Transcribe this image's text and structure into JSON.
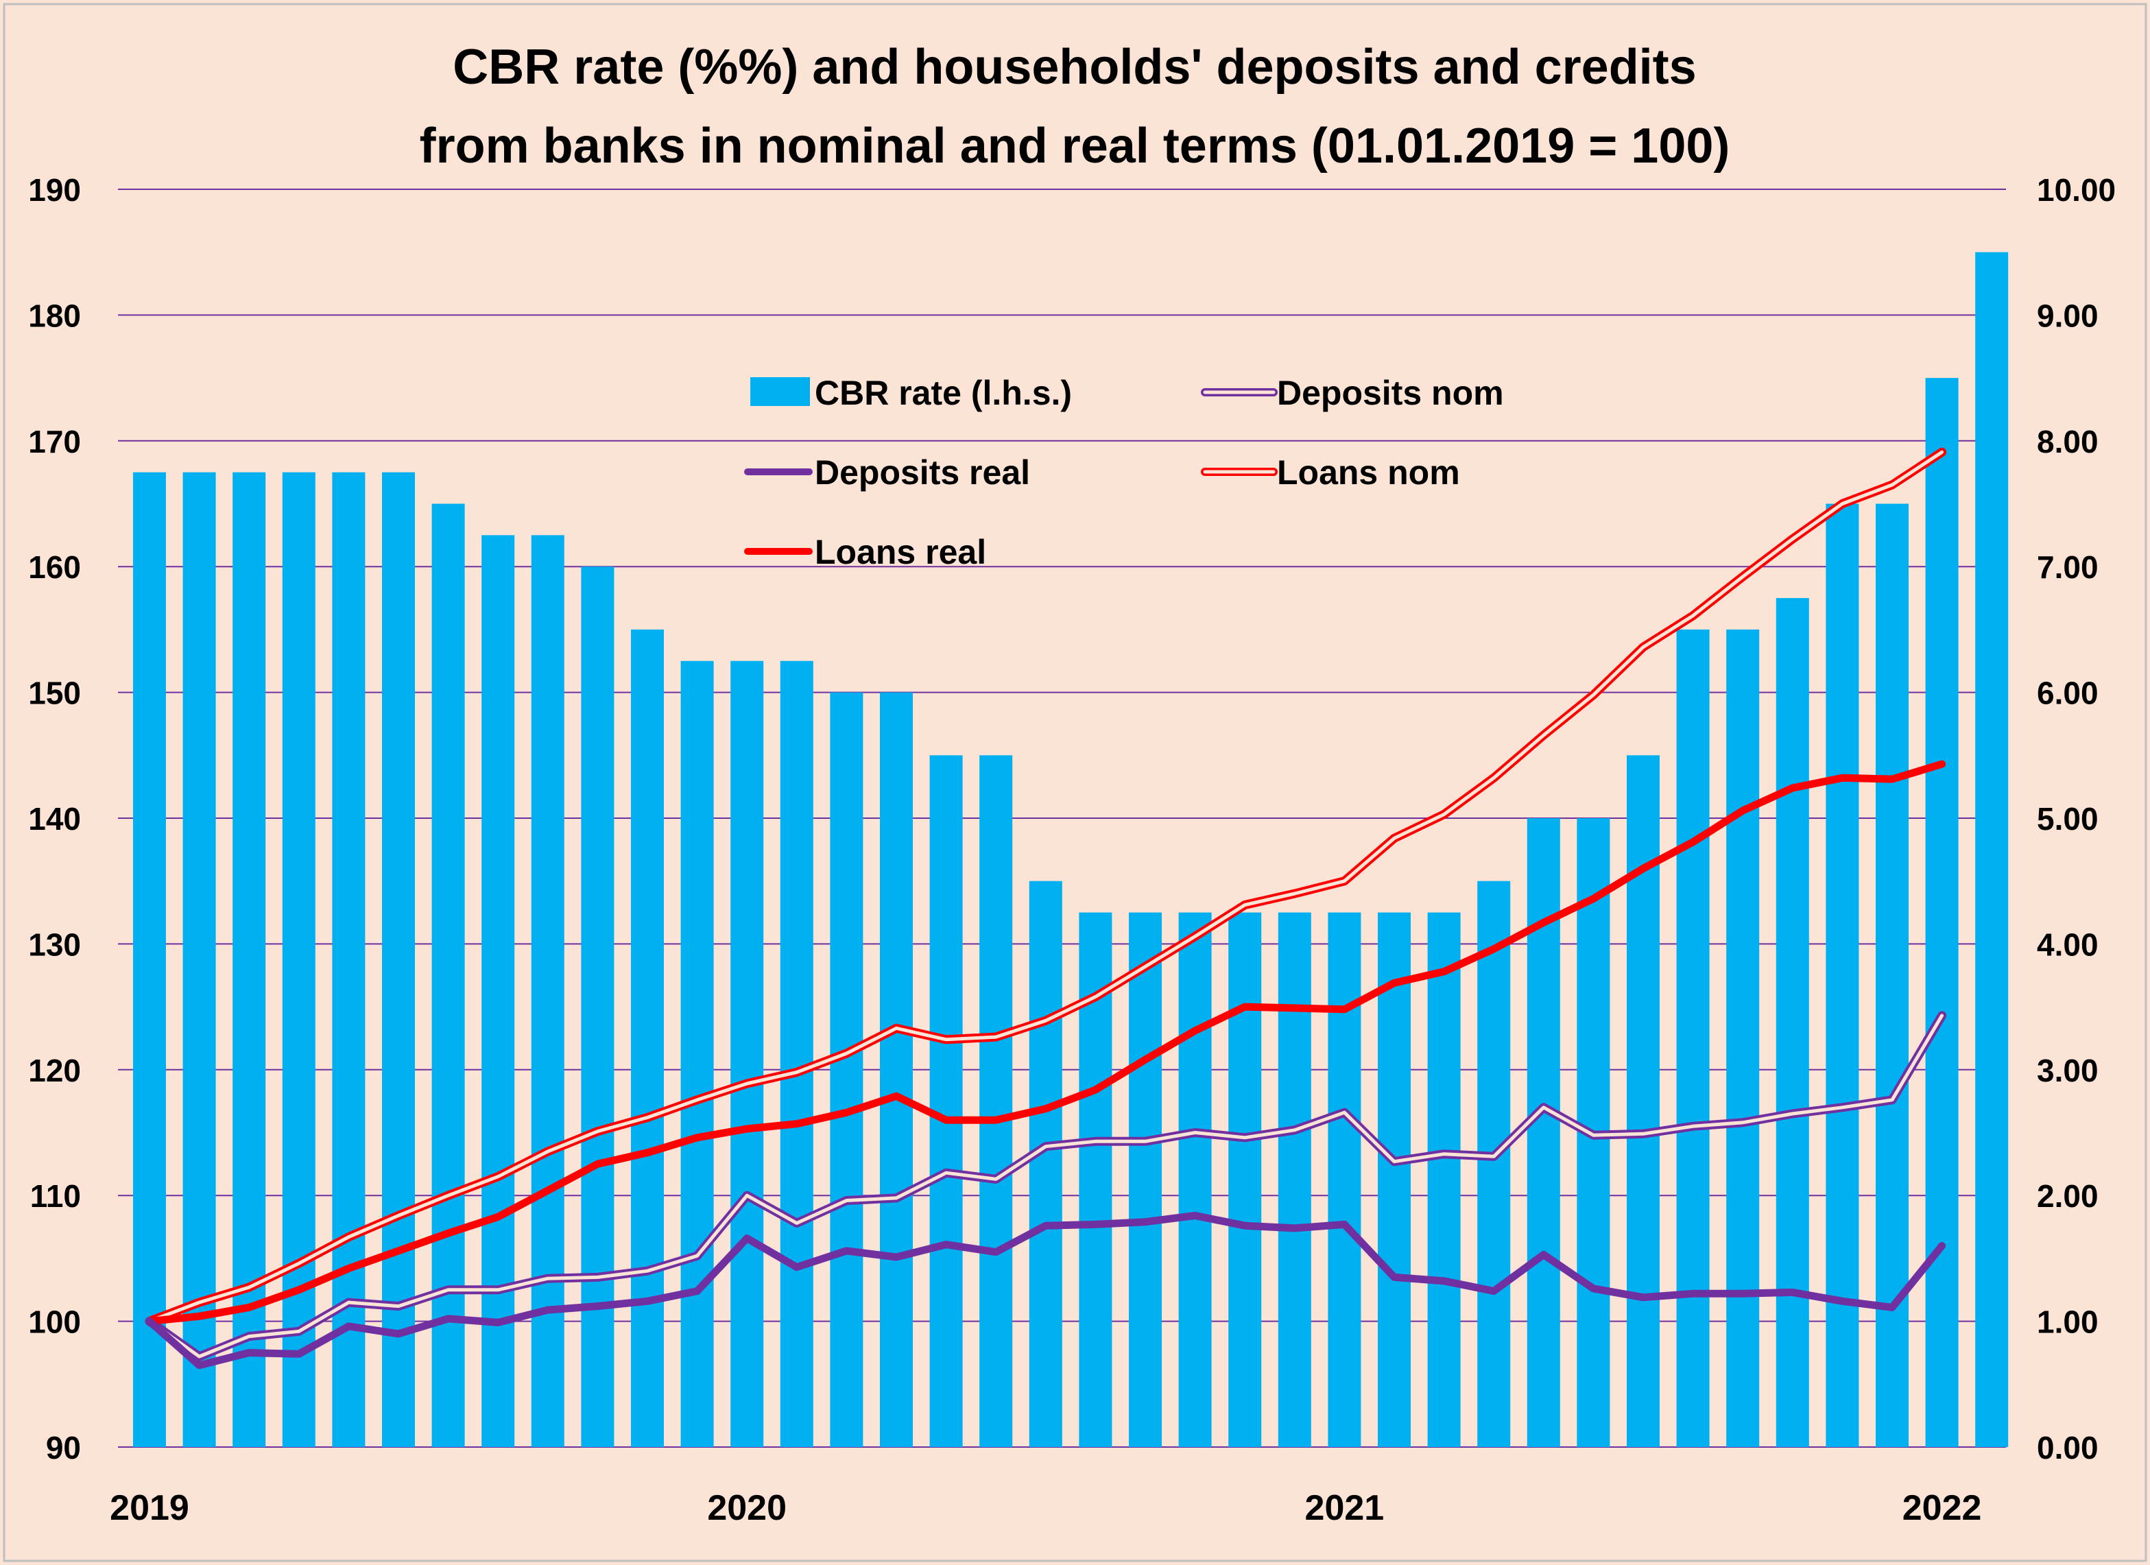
{
  "chart_data": {
    "type": "bar",
    "title_lines": [
      "CBR rate (%%) and households' deposits and credits",
      "from banks in nominal and real terms (01.01.2019 = 100)"
    ],
    "x_year_labels": [
      "2019",
      "2020",
      "2021",
      "2022"
    ],
    "left_axis": {
      "ylim": [
        90,
        190
      ],
      "ticks": [
        "90",
        "100",
        "110",
        "120",
        "130",
        "140",
        "150",
        "160",
        "170",
        "180",
        "190"
      ]
    },
    "right_axis": {
      "ylim": [
        0,
        10
      ],
      "ticks": [
        "0.00",
        "1.00",
        "2.00",
        "3.00",
        "4.00",
        "5.00",
        "6.00",
        "7.00",
        "8.00",
        "9.00",
        "10.00"
      ]
    },
    "grid": true,
    "legend_position": "top-center",
    "colors": {
      "background": "#fbe4d6",
      "bars": "#00b0f0",
      "deposits": "#7030a0",
      "loans": "#ff0000",
      "grid": "#7030a0"
    },
    "series": [
      {
        "name": "CBR rate (l.h.s.)",
        "kind": "bar",
        "values": [
          167.5,
          167.5,
          167.5,
          167.5,
          167.5,
          167.5,
          165,
          162.5,
          162.5,
          160,
          155,
          152.5,
          152.5,
          152.5,
          150,
          150,
          145,
          145,
          135,
          132.5,
          132.5,
          132.5,
          132.5,
          132.5,
          132.5,
          132.5,
          132.5,
          135,
          140,
          140,
          145,
          155,
          155,
          157.5,
          165,
          165,
          175,
          185
        ]
      },
      {
        "name": "Deposits nom",
        "kind": "line-double",
        "values": [
          100,
          97.2,
          98.8,
          99.2,
          101.5,
          101.2,
          102.5,
          102.5,
          103.4,
          103.5,
          104,
          105.2,
          110,
          107.8,
          109.6,
          109.8,
          111.8,
          111.3,
          113.9,
          114.3,
          114.3,
          115,
          114.6,
          115.2,
          116.6,
          112.7,
          113.3,
          113.1,
          117,
          114.8,
          114.9,
          115.5,
          115.8,
          116.5,
          117,
          117.6,
          124.3
        ]
      },
      {
        "name": "Deposits real",
        "kind": "line",
        "values": [
          100,
          96.5,
          97.5,
          97.4,
          99.6,
          99,
          100.2,
          99.9,
          100.9,
          101.2,
          101.6,
          102.4,
          106.6,
          104.3,
          105.6,
          105.1,
          106.1,
          105.5,
          107.6,
          107.7,
          107.9,
          108.4,
          107.6,
          107.4,
          107.7,
          103.5,
          103.2,
          102.4,
          105.3,
          102.6,
          101.9,
          102.2,
          102.2,
          102.3,
          101.6,
          101.1,
          106
        ]
      },
      {
        "name": "Loans nom",
        "kind": "line-double",
        "values": [
          100,
          101.5,
          102.7,
          104.6,
          106.7,
          108.4,
          110,
          111.5,
          113.5,
          115.1,
          116.2,
          117.6,
          118.9,
          119.8,
          121.3,
          123.3,
          122.4,
          122.6,
          123.9,
          125.8,
          128.2,
          130.6,
          133.1,
          134,
          135,
          138.4,
          140.3,
          143.2,
          146.6,
          149.8,
          153.6,
          156.1,
          159.2,
          162.2,
          165,
          166.5,
          169.1
        ]
      },
      {
        "name": "Loans real",
        "kind": "line",
        "values": [
          100,
          100.4,
          101.1,
          102.5,
          104.2,
          105.6,
          107,
          108.3,
          110.4,
          112.5,
          113.4,
          114.6,
          115.3,
          115.7,
          116.6,
          117.9,
          116,
          116,
          116.9,
          118.4,
          120.8,
          123.1,
          125,
          124.9,
          124.8,
          126.9,
          127.8,
          129.6,
          131.7,
          133.6,
          136,
          138.1,
          140.6,
          142.4,
          143.2,
          143.1,
          144.3
        ]
      }
    ]
  }
}
